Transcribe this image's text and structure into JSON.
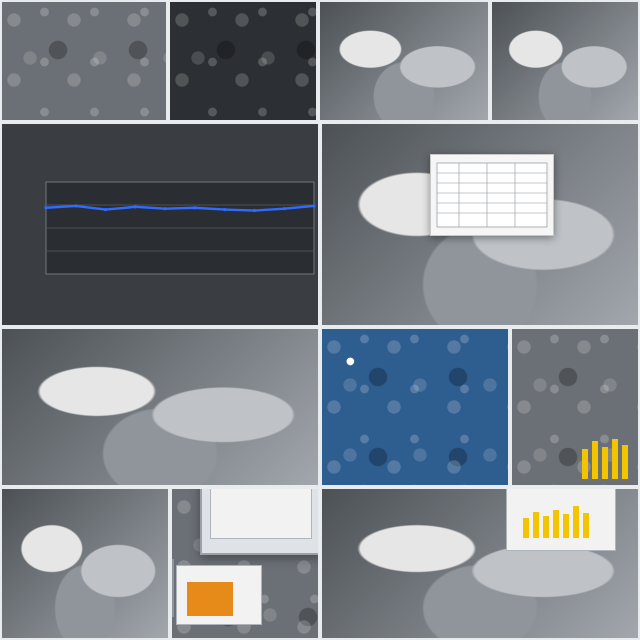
{
  "collage": {
    "title": "",
    "panels": {
      "top_left": {
        "kind": "photo"
      },
      "top_mid": {
        "kind": "photo"
      },
      "top_right_left": {
        "kind": "photo"
      },
      "top_right_right": {
        "kind": "photo"
      },
      "left_chart": {
        "kind": "chart"
      },
      "right_large": {
        "kind": "photo"
      },
      "mid_left": {
        "kind": "photo"
      },
      "mid_right_blue": {
        "kind": "photo"
      },
      "mid_right_gray": {
        "kind": "photo"
      },
      "bottom_left": {
        "kind": "photo"
      },
      "bottom_mid": {
        "kind": "monitor"
      },
      "bottom_right": {
        "kind": "photo"
      }
    }
  },
  "chart_data": {
    "type": "line",
    "title": "",
    "xlabel": "",
    "ylabel": "",
    "series": [
      {
        "name": "",
        "x": [
          0,
          1,
          2,
          3,
          4,
          5,
          6,
          7,
          8,
          9
        ],
        "values": [
          0.72,
          0.74,
          0.7,
          0.73,
          0.71,
          0.72,
          0.7,
          0.69,
          0.71,
          0.74
        ]
      }
    ],
    "ylim": [
      0,
      1
    ],
    "grid": true,
    "legend": "none"
  },
  "colors": {
    "line": "#2f6bff",
    "panel_border": "#e9ecef",
    "chart_bg": "#3a3d41",
    "accent_orange": "#e68a1a",
    "accent_yellow": "#f2c500"
  }
}
